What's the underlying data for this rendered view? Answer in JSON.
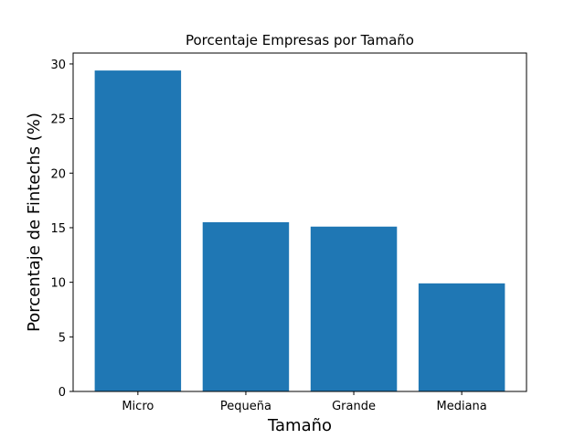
{
  "chart_data": {
    "type": "bar",
    "title": "Porcentaje Empresas por Tamaño",
    "xlabel": "Tamaño",
    "ylabel": "Porcentaje de Fintechs (%)",
    "categories": [
      "Micro",
      "Pequeña",
      "Grande",
      "Mediana"
    ],
    "values": [
      29.4,
      15.5,
      15.1,
      9.9
    ],
    "ylim": [
      0,
      31
    ],
    "yticks": [
      0,
      5,
      10,
      15,
      20,
      25,
      30
    ],
    "bar_color": "#1f77b4",
    "grid": false,
    "legend": "none"
  }
}
